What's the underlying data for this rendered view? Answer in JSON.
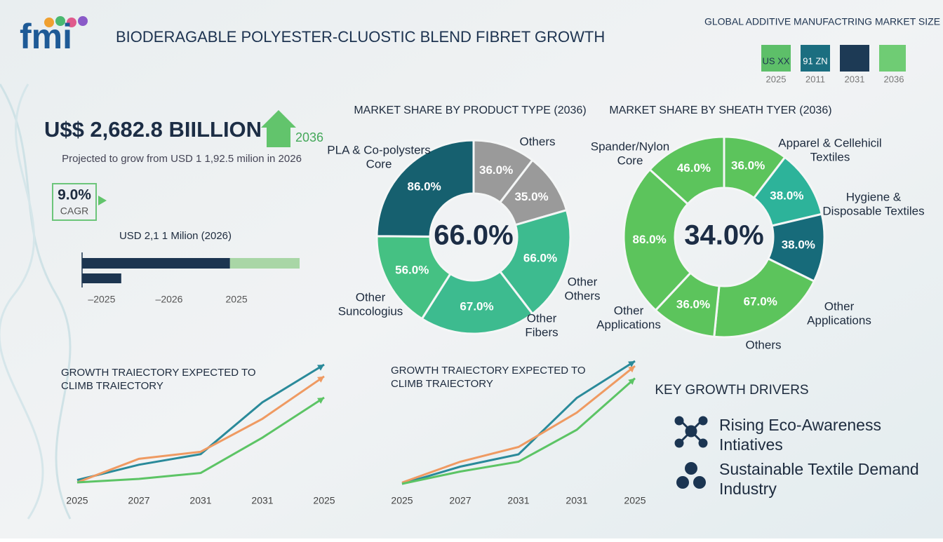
{
  "header": {
    "logo": "fmi",
    "title": "BIODERAGABLE POLYESTER-CLUOSTIC BLEND FIBRET GROWTH"
  },
  "market_size": {
    "title": "GLOBAL ADDITIVE MANUFACTRING MARKET SIZE",
    "tiles": [
      {
        "label": "US XX",
        "year": "2025",
        "color": "#5dbf69"
      },
      {
        "label": "91 ZN",
        "year": "2011",
        "color": "#1b6e80"
      },
      {
        "year": "2031",
        "color": "#1d3a55"
      },
      {
        "year": "2036",
        "color": "#6fcc74"
      }
    ]
  },
  "headline": {
    "value": "U$$ 2,682.8 BIILLION",
    "year": "2036",
    "subtitle": "Projected to grow from USD 1 1,92.5 milion in 2026",
    "cagr": "9.0%",
    "cagr_label": "CAGR"
  },
  "chart_data": [
    {
      "type": "bar",
      "orientation": "horizontal",
      "title": "USD 2,1 1 Milion (2026)",
      "categories": [
        null,
        null
      ],
      "series": [
        {
          "color": "#1c3550",
          "values": [
            68,
            18
          ]
        },
        {
          "color": "#a9d6a6",
          "values": [
            32,
            null
          ]
        }
      ],
      "xlim": [
        0,
        100
      ],
      "xticks": [
        {
          "value": 9,
          "label": "–2025"
        },
        {
          "value": 40,
          "label": "–2026"
        },
        {
          "value": 71,
          "label": "2025"
        }
      ]
    },
    {
      "type": "donut",
      "title": "MARKET SHARE BY PRODUCT TYPE (2036)",
      "center_label": "66.0%",
      "values": [
        36,
        35,
        66,
        67,
        56,
        86
      ],
      "value_labels": [
        "36.0%",
        "35.0%",
        "66.0%",
        "67.0%",
        "56.0%",
        "86.0%"
      ],
      "colors": [
        "#9a9a9a",
        "#9a9a9a",
        "#3dbb8f",
        "#3dbb8f",
        "#45c183",
        "#16606f"
      ],
      "annotations": [
        [
          "PLA & Co-polysters",
          "Core"
        ],
        [
          "Others"
        ],
        [
          "Other",
          "Others"
        ],
        [
          "Other",
          "Fibers"
        ],
        [
          "Other",
          "Suncologius"
        ]
      ]
    },
    {
      "type": "donut",
      "title": "MARKET SHARE BY SHEATH TYER (2036)",
      "center_label": "34.0%",
      "values": [
        36,
        38,
        38,
        67,
        36,
        86,
        46
      ],
      "value_labels": [
        "36.0%",
        "38.0%",
        "38.0%",
        "67.0%",
        "36.0%",
        "86.0%",
        "46.0%"
      ],
      "colors": [
        "#5cc45c",
        "#2db39a",
        "#176b7a",
        "#5cc45c",
        "#5cc45c",
        "#5cc45c",
        "#5cc45c"
      ],
      "annotations": [
        [
          "Spander/Nylon",
          "Core"
        ],
        [
          "Apparel & Cellehicil",
          "Textiles"
        ],
        [
          "Hygiene &",
          "Disposable Textiles"
        ],
        [
          "Other",
          "Applications"
        ],
        [
          "Others"
        ],
        [
          "Other",
          "Applications"
        ]
      ]
    },
    {
      "type": "line",
      "title": [
        "GROWTH TRAIECTORY EXPECTED TO",
        "CLIMB TRAIECTORY"
      ],
      "categories": [
        "2025",
        "2027",
        "2031",
        "2031",
        "2025"
      ],
      "ylim": [
        0,
        100
      ],
      "series": [
        {
          "color": "#2a8a9a",
          "values": [
            2,
            15,
            24,
            68,
            100
          ]
        },
        {
          "color": "#ef9a62",
          "values": [
            0,
            20,
            26,
            54,
            90
          ]
        },
        {
          "color": "#5cc465",
          "values": [
            0,
            3,
            8,
            38,
            72
          ]
        }
      ]
    },
    {
      "type": "line",
      "title": [
        "GROWTH TRAIECTORY EXPECTED TO",
        "CLIMB TRAIECTORY"
      ],
      "categories": [
        "2025",
        "2027",
        "2031",
        "2031",
        "2025"
      ],
      "ylim": [
        0,
        100
      ],
      "series": [
        {
          "color": "#2a8a9a",
          "values": [
            0,
            14,
            24,
            70,
            100
          ]
        },
        {
          "color": "#ef9a62",
          "values": [
            1,
            18,
            30,
            58,
            96
          ]
        },
        {
          "color": "#5cc465",
          "values": [
            0,
            10,
            18,
            44,
            86
          ]
        }
      ]
    }
  ],
  "drivers": {
    "title": "KEY GROWTH DRIVERS",
    "items": [
      [
        "Rising Eco-Awareness",
        "Intiatives"
      ],
      [
        "Sustainable Textile Demand",
        "Industry"
      ]
    ]
  }
}
